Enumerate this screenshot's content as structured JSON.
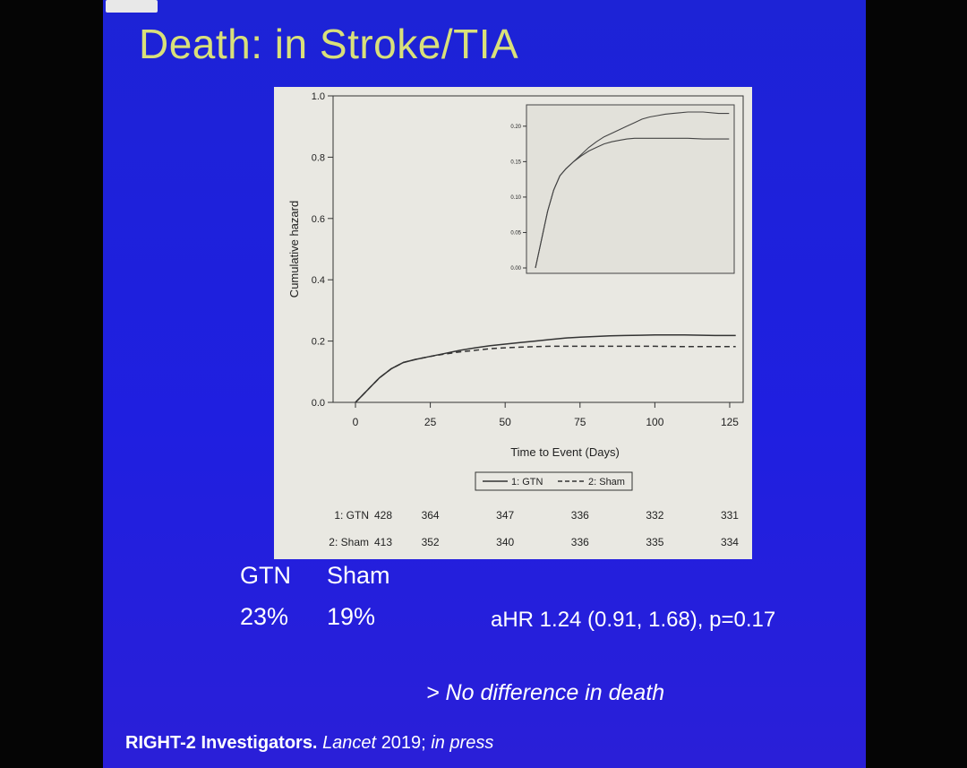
{
  "slide": {
    "title": "Death: in Stroke/TIA",
    "stats": {
      "gtn_label": "GTN",
      "sham_label": "Sham",
      "gtn_value": "23%",
      "sham_value": "19%",
      "ahr": "aHR 1.24 (0.91, 1.68), p=0.17"
    },
    "conclusion": "> No difference in death",
    "citation": {
      "authors": "RIGHT-2 Investigators.",
      "journal": "Lancet",
      "year": "2019;",
      "status": "in press"
    }
  },
  "chart_data": {
    "type": "line",
    "title": "",
    "xlabel": "Time to Event (Days)",
    "ylabel": "Cumulative hazard",
    "xlim": [
      0,
      128
    ],
    "ylim": [
      0,
      1.0
    ],
    "x_ticks": [
      0,
      25,
      50,
      75,
      100,
      125
    ],
    "y_ticks": [
      "0.0",
      "0.2",
      "0.4",
      "0.6",
      "0.8",
      "1.0"
    ],
    "legend": {
      "position": "bottom",
      "entries": [
        "1: GTN",
        "2: Sham"
      ]
    },
    "series": [
      {
        "name": "1: GTN",
        "style": "solid",
        "x": [
          0,
          2,
          5,
          8,
          12,
          16,
          20,
          25,
          30,
          35,
          40,
          45,
          50,
          55,
          60,
          65,
          70,
          75,
          80,
          85,
          90,
          95,
          100,
          110,
          120,
          127
        ],
        "y": [
          0,
          0.02,
          0.05,
          0.08,
          0.11,
          0.13,
          0.14,
          0.15,
          0.16,
          0.17,
          0.178,
          0.185,
          0.19,
          0.195,
          0.2,
          0.205,
          0.21,
          0.213,
          0.215,
          0.217,
          0.218,
          0.219,
          0.22,
          0.22,
          0.218,
          0.218
        ]
      },
      {
        "name": "2: Sham",
        "style": "dashed",
        "x": [
          0,
          2,
          5,
          8,
          12,
          16,
          20,
          25,
          30,
          35,
          40,
          45,
          50,
          55,
          60,
          65,
          70,
          75,
          80,
          90,
          100,
          110,
          120,
          127
        ],
        "y": [
          0,
          0.02,
          0.05,
          0.08,
          0.11,
          0.13,
          0.14,
          0.15,
          0.158,
          0.165,
          0.17,
          0.175,
          0.178,
          0.18,
          0.182,
          0.183,
          0.183,
          0.183,
          0.183,
          0.183,
          0.183,
          0.182,
          0.182,
          0.182
        ]
      }
    ],
    "inset": {
      "y_ticks": [
        "0.00",
        "0.05",
        "0.10",
        "0.15",
        "0.20"
      ],
      "ylim": [
        0,
        0.22
      ],
      "xlim": [
        0,
        128
      ]
    },
    "risk_table": {
      "rows": [
        {
          "label": "1: GTN",
          "values": [
            "428",
            "364",
            "347",
            "336",
            "332",
            "331"
          ]
        },
        {
          "label": "2: Sham",
          "values": [
            "413",
            "352",
            "340",
            "336",
            "335",
            "334"
          ]
        }
      ]
    }
  }
}
